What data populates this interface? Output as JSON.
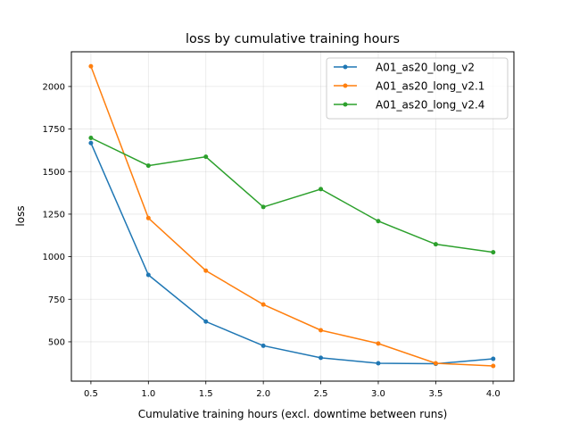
{
  "chart_data": {
    "type": "line",
    "title": "loss by cumulative training hours",
    "xlabel": "Cumulative training hours (excl. downtime between runs)",
    "ylabel": "loss",
    "x": [
      0.5,
      1.0,
      1.5,
      2.0,
      2.5,
      3.0,
      3.5,
      4.0
    ],
    "xlim": [
      0.33,
      4.18
    ],
    "ylim": [
      269,
      2204
    ],
    "xticks": [
      "0.5",
      "1.0",
      "1.5",
      "2.0",
      "2.5",
      "3.0",
      "3.5",
      "4.0"
    ],
    "yticks": [
      "500",
      "750",
      "1000",
      "1250",
      "1500",
      "1750",
      "2000"
    ],
    "grid": true,
    "legend_position": "top-right",
    "series": [
      {
        "name": "A01_as20_long_v2",
        "color": "#1f77b4",
        "values": [
          1668,
          893,
          619,
          477,
          406,
          374,
          371,
          400
        ]
      },
      {
        "name": "A01_as20_long_v2.1",
        "color": "#ff7f0e",
        "values": [
          2119,
          1227,
          918,
          719,
          568,
          490,
          374,
          358
        ]
      },
      {
        "name": "A01_as20_long_v2.4",
        "color": "#2ca02c",
        "values": [
          1698,
          1535,
          1587,
          1292,
          1397,
          1209,
          1073,
          1026
        ]
      }
    ]
  }
}
